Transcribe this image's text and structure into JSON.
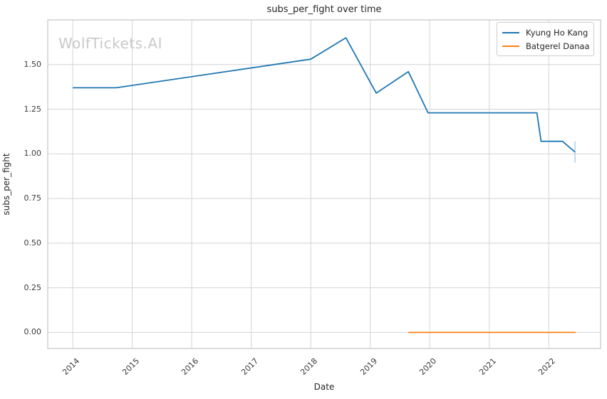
{
  "watermark": "WolfTickets.AI",
  "chart_data": {
    "type": "line",
    "title": "subs_per_fight over time",
    "xlabel": "Date",
    "ylabel": "subs_per_fight",
    "x_unit": "decimal_year",
    "grid": true,
    "legend_position": "upper right",
    "xlim": [
      2013.58,
      2022.87
    ],
    "ylim": [
      -0.09,
      1.75
    ],
    "xticks": [
      2014,
      2015,
      2016,
      2017,
      2018,
      2019,
      2020,
      2021,
      2022
    ],
    "ytick_labels": [
      "0.00",
      "0.25",
      "0.50",
      "0.75",
      "1.00",
      "1.25",
      "1.50"
    ],
    "ytick_values": [
      0.0,
      0.25,
      0.5,
      0.75,
      1.0,
      1.25,
      1.5
    ],
    "grid_color": "#d4d4d4",
    "border_color": "#c4c4c4",
    "series": [
      {
        "name": "Kyung Ho Kang",
        "color": "#1f77b4",
        "points": [
          [
            2014.0,
            1.37
          ],
          [
            2014.73,
            1.37
          ],
          [
            2018.0,
            1.53
          ],
          [
            2018.59,
            1.65
          ],
          [
            2019.1,
            1.34
          ],
          [
            2019.64,
            1.46
          ],
          [
            2019.97,
            1.23
          ],
          [
            2021.8,
            1.23
          ],
          [
            2021.87,
            1.07
          ],
          [
            2022.23,
            1.07
          ],
          [
            2022.44,
            1.01
          ]
        ]
      },
      {
        "name": "Batgerel Danaa",
        "color": "#ff7f0e",
        "points": [
          [
            2019.64,
            0.0
          ],
          [
            2022.45,
            0.0
          ]
        ]
      }
    ],
    "error_bar": {
      "series": "Kyung Ho Kang",
      "x": 2022.44,
      "low": 0.95,
      "high": 1.07,
      "color": "#b3d3e8"
    }
  }
}
